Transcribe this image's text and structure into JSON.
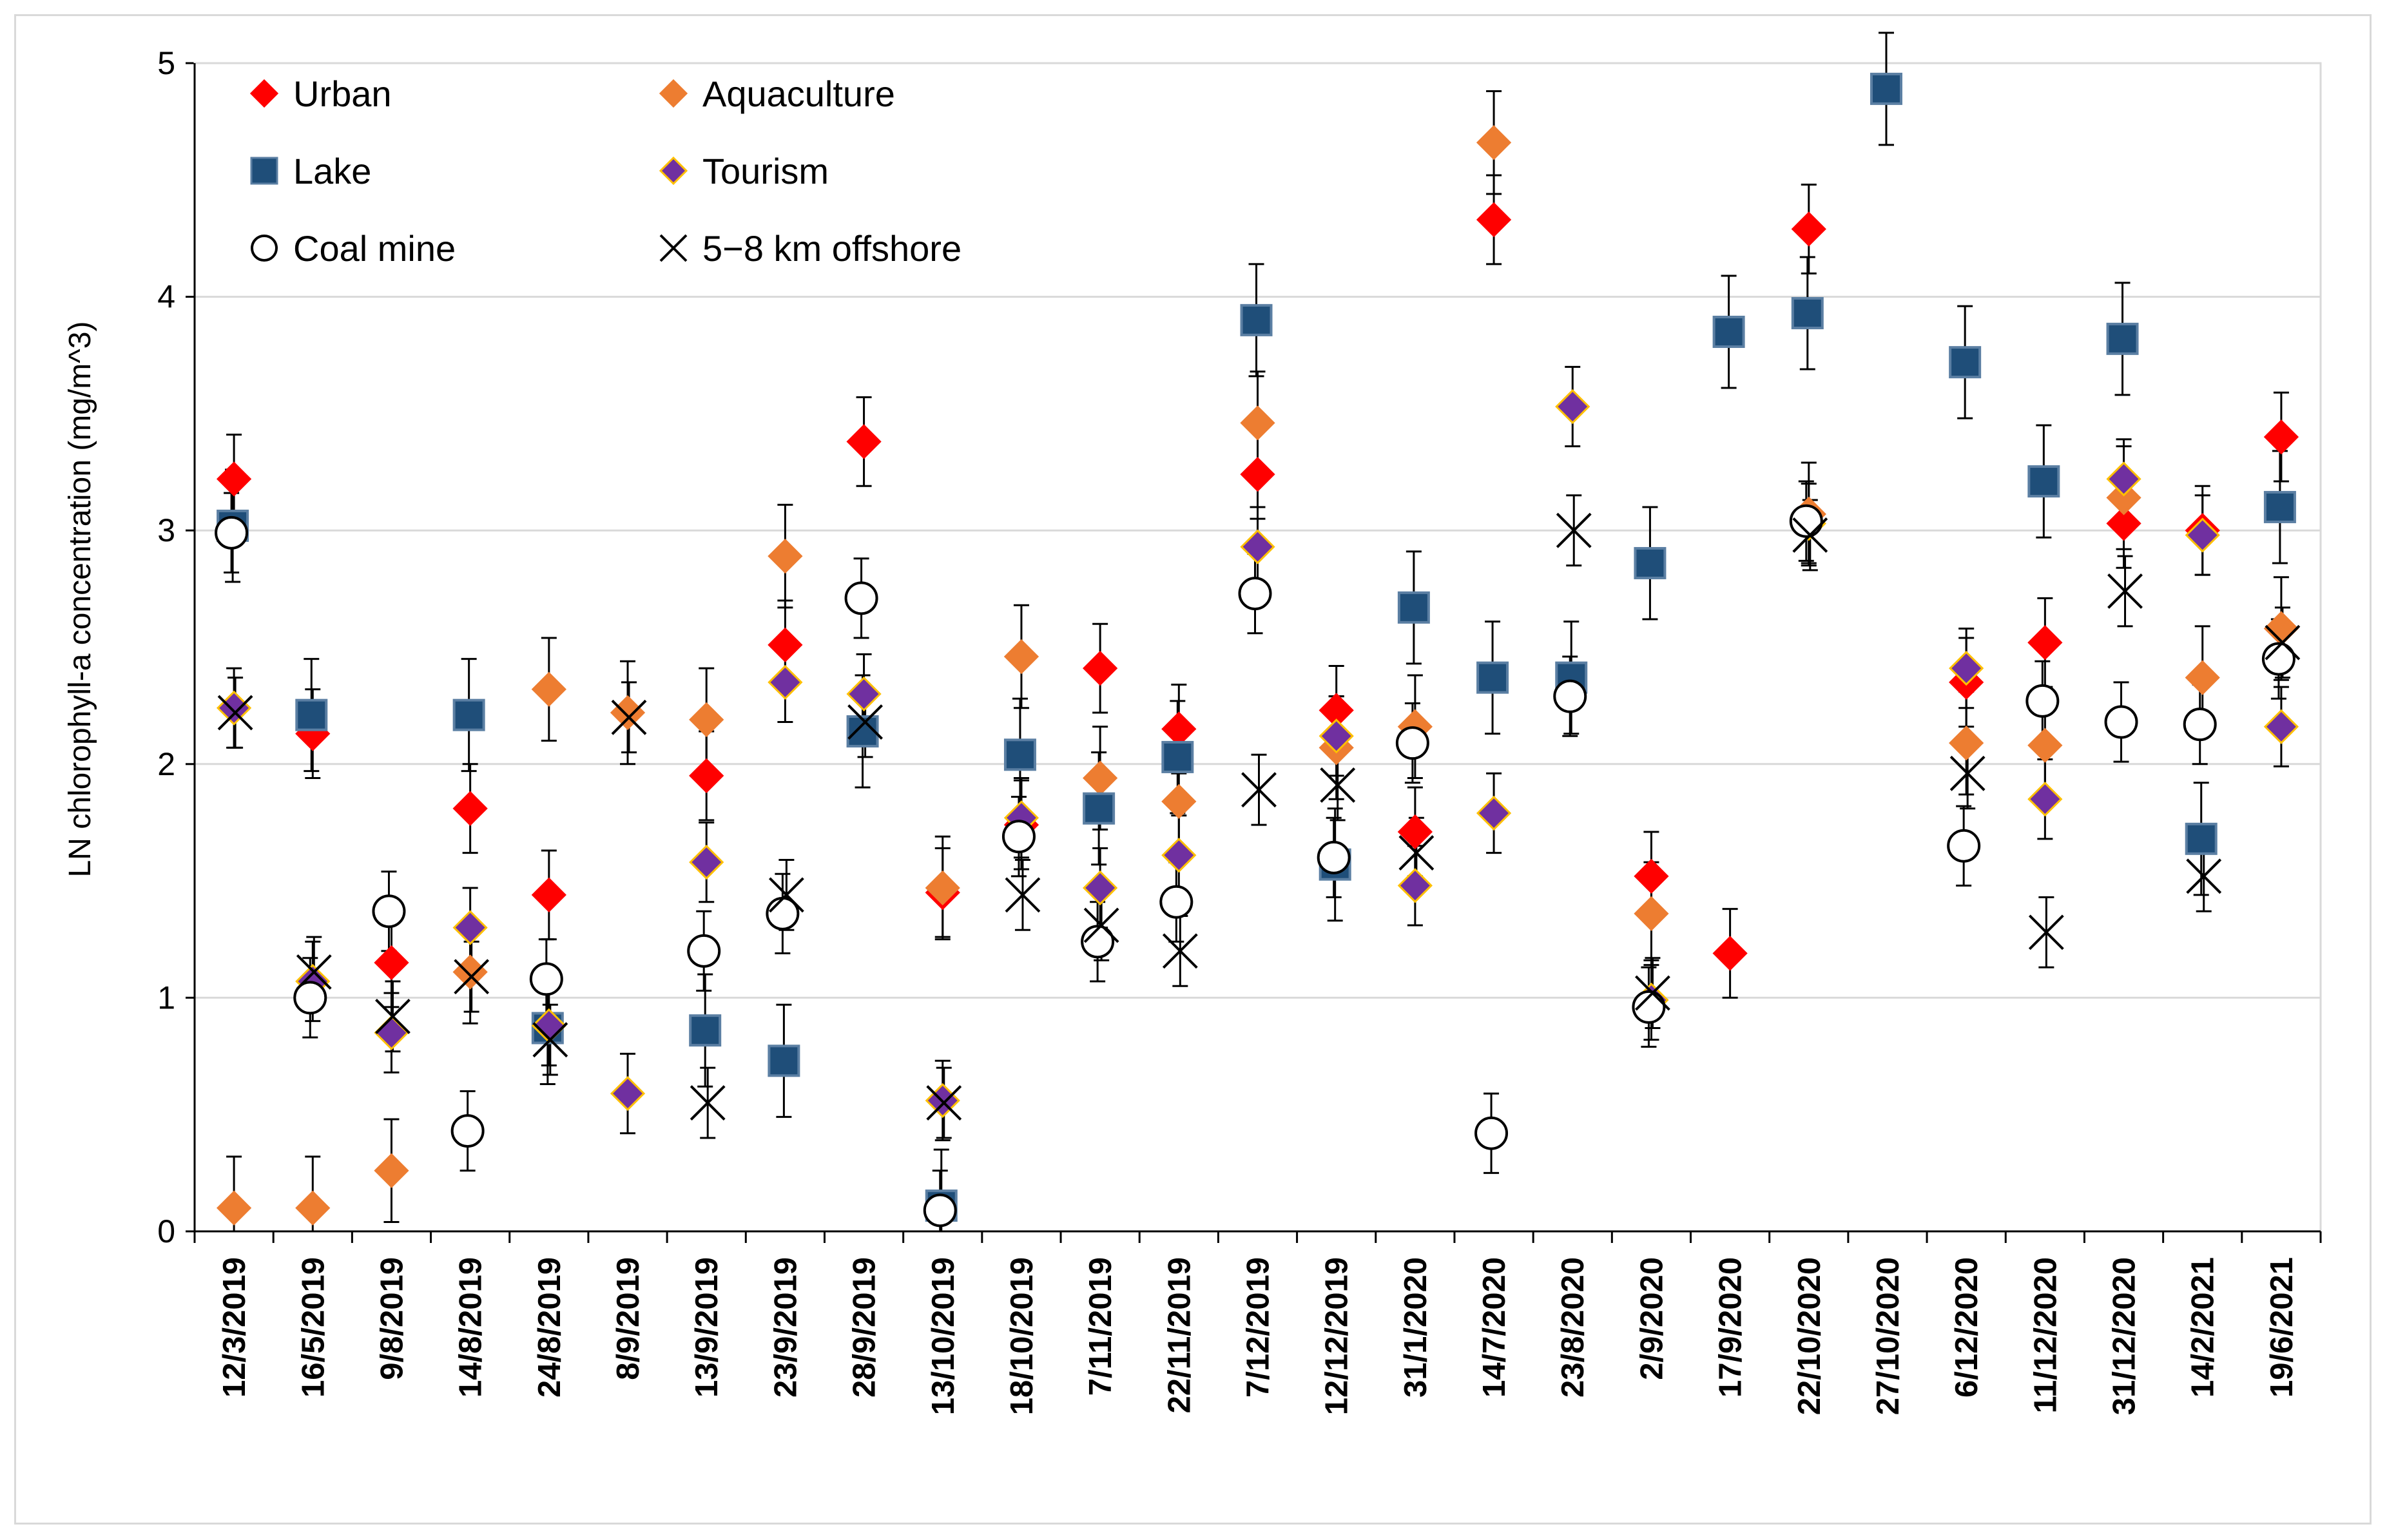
{
  "chart_data": {
    "type": "scatter",
    "title": "",
    "xlabel": "",
    "ylabel": "LN chlorophyll-a concentration (mg/m^3)",
    "ylim": [
      0,
      5
    ],
    "yticks": [
      0,
      1,
      2,
      3,
      4,
      5
    ],
    "grid": true,
    "legend_position": "top-left",
    "categories": [
      "12/3/2019",
      "16/5/2019",
      "9/8/2019",
      "14/8/2019",
      "24/8/2019",
      "8/9/2019",
      "13/9/2019",
      "23/9/2019",
      "28/9/2019",
      "13/10/2019",
      "18/10/2019",
      "7/11/2019",
      "22/11/2019",
      "7/12/2019",
      "12/12/2019",
      "31/1/2020",
      "14/7/2020",
      "23/8/2020",
      "2/9/2020",
      "17/9/2020",
      "22/10/2020",
      "27/10/2020",
      "6/12/2020",
      "11/12/2020",
      "31/12/2020",
      "14/2/2021",
      "19/6/2021"
    ],
    "series": [
      {
        "name": "Urban",
        "marker": "diamond",
        "color": "#ff0000",
        "edge": "#ff0000",
        "values": [
          3.22,
          2.13,
          1.15,
          1.81,
          1.44,
          null,
          1.95,
          2.51,
          3.38,
          1.45,
          1.74,
          2.41,
          2.15,
          3.24,
          2.23,
          1.71,
          4.33,
          null,
          1.52,
          1.19,
          4.29,
          null,
          2.35,
          2.52,
          3.03,
          3.0,
          3.4
        ],
        "errors": [
          0.19,
          0.19,
          0.19,
          0.19,
          0.19,
          null,
          0.19,
          0.19,
          0.19,
          0.19,
          0.19,
          0.19,
          0.19,
          0.19,
          0.19,
          0.19,
          0.19,
          null,
          0.19,
          0.19,
          0.19,
          null,
          0.19,
          0.19,
          0.19,
          0.19,
          0.19
        ]
      },
      {
        "name": "Aquaculture",
        "marker": "diamond",
        "color": "#ed7d31",
        "edge": "#ed7d31",
        "values": [
          0.1,
          0.1,
          0.26,
          1.11,
          2.32,
          2.22,
          2.19,
          2.89,
          null,
          1.47,
          2.46,
          1.94,
          1.84,
          3.46,
          2.07,
          2.16,
          4.66,
          null,
          1.36,
          null,
          3.07,
          null,
          2.09,
          2.08,
          3.14,
          2.37,
          2.58
        ],
        "errors": [
          0.22,
          0.22,
          0.22,
          0.22,
          0.22,
          0.22,
          0.22,
          0.22,
          null,
          0.22,
          0.22,
          0.22,
          0.22,
          0.22,
          0.22,
          0.22,
          0.22,
          null,
          0.22,
          null,
          0.22,
          null,
          0.22,
          0.22,
          0.22,
          0.22,
          0.22
        ]
      },
      {
        "name": "Lake",
        "marker": "square",
        "color": "#1f4e79",
        "edge": "#5b7fa3",
        "values": [
          3.02,
          2.21,
          null,
          2.21,
          0.87,
          null,
          0.86,
          0.73,
          2.14,
          0.11,
          2.04,
          1.81,
          2.03,
          3.9,
          1.57,
          2.67,
          2.37,
          2.37,
          2.86,
          3.85,
          3.93,
          4.89,
          3.72,
          3.21,
          3.82,
          1.68,
          3.1
        ],
        "errors": [
          0.24,
          0.24,
          null,
          0.24,
          0.24,
          null,
          0.24,
          0.24,
          0.24,
          0.24,
          0.24,
          0.24,
          0.24,
          0.24,
          0.24,
          0.24,
          0.24,
          0.24,
          0.24,
          0.24,
          0.24,
          0.24,
          0.24,
          0.24,
          0.24,
          0.24,
          0.24
        ]
      },
      {
        "name": "Tourism",
        "marker": "diamond",
        "color": "#7030a0",
        "edge": "#ffc000",
        "values": [
          2.24,
          1.07,
          0.85,
          1.3,
          0.88,
          0.59,
          1.58,
          2.35,
          2.3,
          0.56,
          1.77,
          1.47,
          1.61,
          2.93,
          2.12,
          1.48,
          1.79,
          3.53,
          0.99,
          null,
          3.03,
          null,
          2.41,
          1.85,
          3.22,
          2.98,
          2.16
        ],
        "errors": [
          0.17,
          0.17,
          0.17,
          0.17,
          0.17,
          0.17,
          0.17,
          0.17,
          0.17,
          0.17,
          0.17,
          0.17,
          0.17,
          0.17,
          0.17,
          0.17,
          0.17,
          0.17,
          0.17,
          null,
          0.17,
          null,
          0.17,
          0.17,
          0.17,
          0.17,
          0.17
        ]
      },
      {
        "name": "Coal mine",
        "marker": "circle",
        "color": "#ffffff",
        "edge": "#000000",
        "values": [
          2.99,
          1.0,
          1.37,
          0.43,
          1.08,
          null,
          1.2,
          1.36,
          2.71,
          0.09,
          1.69,
          1.24,
          1.41,
          2.73,
          1.6,
          2.09,
          0.42,
          2.29,
          0.96,
          null,
          3.04,
          null,
          1.65,
          2.27,
          2.18,
          2.17,
          2.45
        ],
        "errors": [
          0.17,
          0.17,
          0.17,
          0.17,
          0.17,
          null,
          0.17,
          0.17,
          0.17,
          0.17,
          0.17,
          0.17,
          0.17,
          0.17,
          0.17,
          0.17,
          0.17,
          0.17,
          0.17,
          null,
          0.17,
          null,
          0.17,
          0.17,
          0.17,
          0.17,
          0.17
        ]
      },
      {
        "name": "5−8 km offshore",
        "marker": "x",
        "color": "#000000",
        "edge": "#000000",
        "values": [
          2.22,
          1.11,
          0.92,
          1.09,
          0.82,
          2.2,
          0.55,
          1.44,
          2.18,
          0.55,
          1.44,
          1.31,
          1.2,
          1.89,
          1.91,
          1.62,
          null,
          3.0,
          1.02,
          null,
          2.98,
          null,
          1.96,
          1.28,
          2.74,
          1.52,
          2.52
        ],
        "errors": [
          0.15,
          0.15,
          0.15,
          0.15,
          0.15,
          0.15,
          0.15,
          0.15,
          0.15,
          0.15,
          0.15,
          0.15,
          0.15,
          0.15,
          0.15,
          0.15,
          null,
          0.15,
          0.15,
          null,
          0.15,
          null,
          0.15,
          0.15,
          0.15,
          0.15,
          0.15
        ]
      }
    ]
  }
}
